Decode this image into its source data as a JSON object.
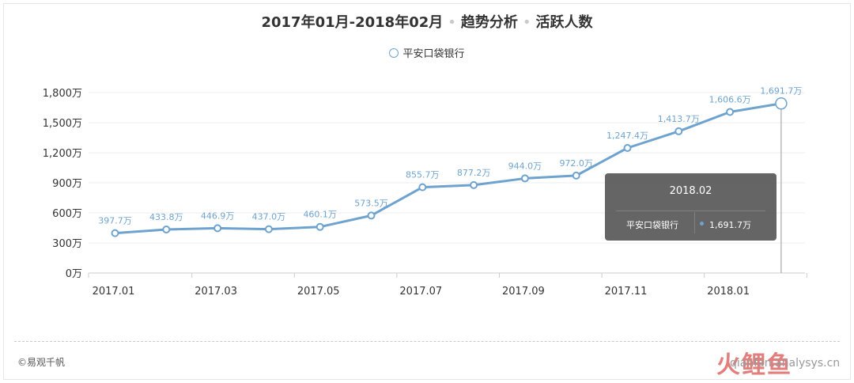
{
  "title": {
    "period": "2017年01月-2018年02月",
    "section": "趋势分析",
    "metric": "活跃人数"
  },
  "legend": {
    "series_name": "平安口袋银行"
  },
  "chart_data": {
    "type": "line",
    "categories": [
      "2017.01",
      "2017.02",
      "2017.03",
      "2017.04",
      "2017.05",
      "2017.06",
      "2017.07",
      "2017.08",
      "2017.09",
      "2017.10",
      "2017.11",
      "2017.12",
      "2018.01",
      "2018.02"
    ],
    "x_tick_labels": [
      "2017.01",
      "2017.03",
      "2017.05",
      "2017.07",
      "2017.09",
      "2017.11",
      "2018.01"
    ],
    "series": [
      {
        "name": "平安口袋银行",
        "values": [
          397.7,
          433.8,
          446.9,
          437.0,
          460.1,
          573.5,
          855.7,
          877.2,
          944.0,
          972.0,
          1247.4,
          1413.7,
          1606.6,
          1691.7
        ],
        "labels": [
          "397.7万",
          "433.8万",
          "446.9万",
          "437.0万",
          "460.1万",
          "573.5万",
          "855.7万",
          "877.2万",
          "944.0万",
          "972.0万",
          "1,247.4万",
          "1,413.7万",
          "1,606.6万",
          "1,691.7万"
        ]
      }
    ],
    "y_ticks": [
      0,
      300,
      600,
      900,
      1200,
      1500,
      1800
    ],
    "y_tick_labels": [
      "0万",
      "300万",
      "600万",
      "900万",
      "1,200万",
      "1,500万",
      "1,800万"
    ],
    "ylim": [
      0,
      1800
    ],
    "grid": true,
    "colors": {
      "line": "#6fa3cf",
      "label": "#6fa3cf"
    }
  },
  "tooltip": {
    "title": "2018.02",
    "series": "平安口袋银行",
    "value": "1,691.7万"
  },
  "footer": {
    "copyright": "©易观千帆",
    "watermark_url": "qianfan.analysys.cn",
    "watermark_logo": "火鲤鱼"
  }
}
